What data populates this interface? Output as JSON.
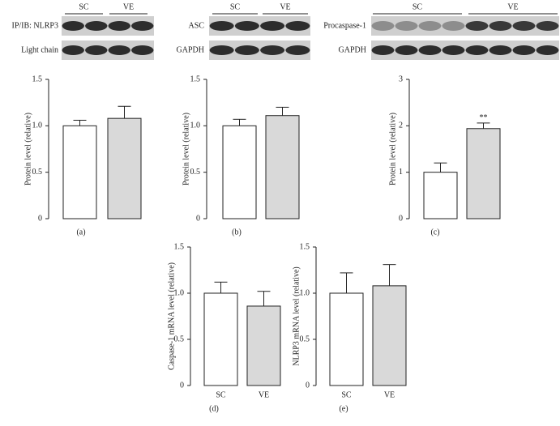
{
  "chart_data": [
    {
      "type": "bar",
      "caption": "(a)",
      "ylabel": "Protein level (relative)",
      "categories": [
        null,
        null
      ],
      "values": [
        1.0,
        1.08
      ],
      "errors": [
        0.06,
        0.13
      ],
      "colors": [
        "#ffffff",
        "#d9d9d9"
      ],
      "ylim": [
        0,
        1.5
      ],
      "yticks": [
        0,
        0.5,
        {
          "value": 1,
          "label": "1.0"
        },
        1.5
      ],
      "blot": {
        "groups": [
          "SC",
          "VE"
        ],
        "rows": [
          "IP/IB: NLRP3",
          "Light chain"
        ]
      }
    },
    {
      "type": "bar",
      "caption": "(b)",
      "ylabel": "Protein level (relative)",
      "categories": [
        null,
        null
      ],
      "values": [
        1.0,
        1.11
      ],
      "errors": [
        0.07,
        0.09
      ],
      "colors": [
        "#ffffff",
        "#d9d9d9"
      ],
      "ylim": [
        0,
        1.5
      ],
      "yticks": [
        0,
        0.5,
        {
          "value": 1,
          "label": "1.0"
        },
        1.5
      ],
      "blot": {
        "groups": [
          "SC",
          "VE"
        ],
        "rows": [
          "ASC",
          "GAPDH"
        ]
      }
    },
    {
      "type": "bar",
      "caption": "(c)",
      "ylabel": "Protein level (relative)",
      "categories": [
        null,
        null
      ],
      "values": [
        1.0,
        1.94
      ],
      "errors": [
        0.2,
        0.12
      ],
      "colors": [
        "#ffffff",
        "#d9d9d9"
      ],
      "annotation": "**",
      "ylim": [
        0,
        3
      ],
      "yticks": [
        0,
        1,
        2,
        3
      ],
      "blot": {
        "groups": [
          "SC",
          "VE"
        ],
        "rows": [
          "Procaspase-1",
          "GAPDH"
        ]
      }
    },
    {
      "type": "bar",
      "caption": "(d)",
      "ylabel": "Caspase-1 mRNA level (relative)",
      "categories": [
        "SC",
        "VE"
      ],
      "values": [
        1.0,
        0.86
      ],
      "errors": [
        0.12,
        0.16
      ],
      "colors": [
        "#ffffff",
        "#d9d9d9"
      ],
      "ylim": [
        0,
        1.5
      ],
      "yticks": [
        0,
        0.5,
        {
          "value": 1,
          "label": "1.0"
        },
        1.5
      ]
    },
    {
      "type": "bar",
      "caption": "(e)",
      "ylabel": "NLRP3 mRNA level (relative)",
      "categories": [
        "SC",
        "VE"
      ],
      "values": [
        1.0,
        1.08
      ],
      "errors": [
        0.22,
        0.23
      ],
      "colors": [
        "#ffffff",
        "#d9d9d9"
      ],
      "ylim": [
        0,
        1.5
      ],
      "yticks": [
        0,
        0.5,
        {
          "value": 1,
          "label": "1.0"
        },
        1.5
      ]
    }
  ]
}
